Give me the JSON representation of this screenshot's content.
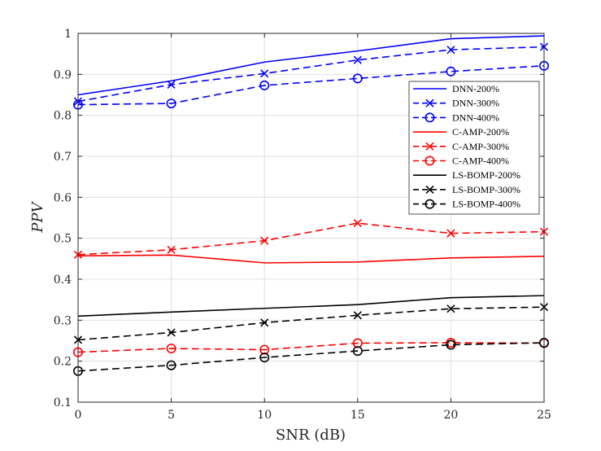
{
  "chart_data": {
    "type": "line",
    "title": "",
    "xlabel": "SNR (dB)",
    "ylabel": "PPV",
    "x": [
      0,
      5,
      10,
      15,
      20,
      25
    ],
    "xlim": [
      0,
      25
    ],
    "ylim": [
      0.1,
      1.0
    ],
    "xticks": [
      "0",
      "5",
      "10",
      "15",
      "20",
      "25"
    ],
    "yticks": [
      "0.1",
      "0.2",
      "0.3",
      "0.4",
      "0.5",
      "0.6",
      "0.7",
      "0.8",
      "0.9",
      "1"
    ],
    "grid": true,
    "legend_position": "upper-right",
    "series": [
      {
        "name": "DNN-200%",
        "color": "#0000ff",
        "dash": "solid",
        "marker": "none",
        "values": [
          0.85,
          0.884,
          0.93,
          0.957,
          0.987,
          0.994
        ]
      },
      {
        "name": "DNN-300%",
        "color": "#0000ff",
        "dash": "dashed",
        "marker": "x",
        "values": [
          0.834,
          0.875,
          0.902,
          0.935,
          0.96,
          0.967
        ]
      },
      {
        "name": "DNN-400%",
        "color": "#0000ff",
        "dash": "dashed",
        "marker": "circle",
        "values": [
          0.826,
          0.829,
          0.873,
          0.89,
          0.907,
          0.921
        ]
      },
      {
        "name": "C-AMP-200%",
        "color": "#ff0000",
        "dash": "solid",
        "marker": "none",
        "values": [
          0.457,
          0.459,
          0.44,
          0.442,
          0.452,
          0.456
        ]
      },
      {
        "name": "C-AMP-300%",
        "color": "#ff0000",
        "dash": "dashed",
        "marker": "x",
        "values": [
          0.46,
          0.472,
          0.494,
          0.537,
          0.512,
          0.516
        ]
      },
      {
        "name": "C-AMP-400%",
        "color": "#ff0000",
        "dash": "dashed",
        "marker": "circle",
        "values": [
          0.222,
          0.231,
          0.228,
          0.244,
          0.245,
          0.244
        ]
      },
      {
        "name": "LS-BOMP-200%",
        "color": "#000000",
        "dash": "solid",
        "marker": "none",
        "values": [
          0.31,
          0.32,
          0.329,
          0.338,
          0.355,
          0.36
        ]
      },
      {
        "name": "LS-BOMP-300%",
        "color": "#000000",
        "dash": "dashed",
        "marker": "x",
        "values": [
          0.252,
          0.27,
          0.294,
          0.312,
          0.328,
          0.332
        ]
      },
      {
        "name": "LS-BOMP-400%",
        "color": "#000000",
        "dash": "dashed",
        "marker": "circle",
        "values": [
          0.176,
          0.19,
          0.209,
          0.225,
          0.24,
          0.245
        ]
      }
    ]
  }
}
